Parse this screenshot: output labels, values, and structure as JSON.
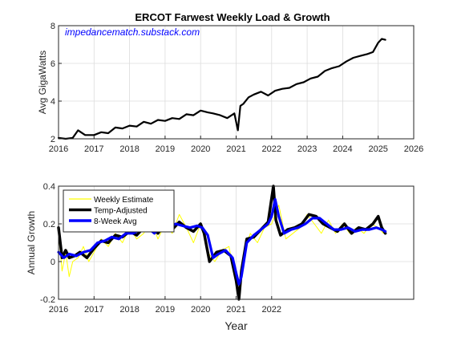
{
  "figure": {
    "title": "ERCOT Farwest Weekly Load & Growth",
    "watermark": "impedancematch.substack.com",
    "watermark_color": "#0000ff"
  },
  "chart_data": [
    {
      "type": "line",
      "title": "ERCOT Farwest Weekly Load & Growth",
      "xlabel": "",
      "ylabel": "Avg GigaWatts",
      "xlim": [
        2016,
        2026
      ],
      "ylim": [
        2,
        8
      ],
      "xticks": [
        2016,
        2017,
        2018,
        2019,
        2020,
        2021,
        2022,
        2023,
        2024,
        2025,
        2026
      ],
      "yticks": [
        2,
        4,
        6,
        8
      ],
      "grid": true,
      "series": [
        {
          "color": "#000000",
          "x": [
            2016.0,
            2016.2,
            2016.4,
            2016.55,
            2016.75,
            2017.0,
            2017.2,
            2017.4,
            2017.6,
            2017.8,
            2018.0,
            2018.2,
            2018.4,
            2018.6,
            2018.8,
            2019.0,
            2019.2,
            2019.4,
            2019.6,
            2019.8,
            2020.0,
            2020.2,
            2020.35,
            2020.55,
            2020.75,
            2020.95,
            2021.05,
            2021.12,
            2021.2,
            2021.35,
            2021.5,
            2021.7,
            2021.9,
            2022.1,
            2022.3,
            2022.5,
            2022.7,
            2022.9,
            2023.1,
            2023.3,
            2023.5,
            2023.7,
            2023.9,
            2024.1,
            2024.3,
            2024.5,
            2024.7,
            2024.85,
            2025.0,
            2025.1,
            2025.2
          ],
          "values": [
            2.05,
            2.0,
            2.05,
            2.45,
            2.2,
            2.2,
            2.35,
            2.3,
            2.6,
            2.55,
            2.7,
            2.65,
            2.9,
            2.8,
            3.0,
            2.95,
            3.1,
            3.05,
            3.3,
            3.25,
            3.5,
            3.4,
            3.35,
            3.25,
            3.1,
            3.35,
            2.45,
            3.75,
            3.85,
            4.2,
            4.35,
            4.5,
            4.3,
            4.55,
            4.65,
            4.7,
            4.9,
            5.0,
            5.2,
            5.3,
            5.6,
            5.75,
            5.85,
            6.1,
            6.3,
            6.4,
            6.5,
            6.6,
            7.1,
            7.3,
            7.25
          ]
        }
      ]
    },
    {
      "type": "line",
      "title": "",
      "xlabel": "Year",
      "ylabel": "Annual Growth",
      "xlim": [
        2016,
        2026
      ],
      "ylim": [
        -0.2,
        0.4
      ],
      "xticks": [
        2016,
        2017,
        2018,
        2019,
        2020,
        2021,
        2022
      ],
      "yticks": [
        -0.2,
        0,
        0.2,
        0.4
      ],
      "grid": true,
      "legend": "top-left",
      "series": [
        {
          "name": "Weekly Estimate",
          "color": "#ffff00",
          "x": [
            2016.0,
            2016.1,
            2016.2,
            2016.3,
            2016.4,
            2016.55,
            2016.7,
            2016.85,
            2017.0,
            2017.2,
            2017.4,
            2017.6,
            2017.8,
            2018.0,
            2018.2,
            2018.4,
            2018.6,
            2018.8,
            2019.0,
            2019.2,
            2019.4,
            2019.6,
            2019.8,
            2020.0,
            2020.2,
            2020.4,
            2020.6,
            2020.8,
            2021.0,
            2021.1,
            2021.2,
            2021.4,
            2021.6,
            2021.8,
            2022.0,
            2022.2,
            2022.4,
            2022.6,
            2022.8,
            2023.0,
            2023.2,
            2023.4,
            2023.6,
            2023.8,
            2024.0,
            2024.2,
            2024.4,
            2024.6,
            2024.8,
            2025.0,
            2025.15
          ],
          "values": [
            0.15,
            -0.05,
            0.05,
            -0.08,
            0.0,
            0.02,
            0.08,
            0.0,
            0.05,
            0.12,
            0.08,
            0.15,
            0.1,
            0.18,
            0.12,
            0.15,
            0.22,
            0.12,
            0.2,
            0.15,
            0.25,
            0.18,
            0.1,
            0.2,
            0.05,
            0.0,
            0.06,
            0.08,
            -0.12,
            -0.15,
            0.02,
            0.15,
            0.1,
            0.18,
            0.2,
            0.3,
            0.12,
            0.15,
            0.18,
            0.25,
            0.2,
            0.15,
            0.22,
            0.15,
            0.2,
            0.15,
            0.18,
            0.15,
            0.2,
            0.18,
            0.15
          ]
        },
        {
          "name": "Temp-Adjusted",
          "color": "#000000",
          "x": [
            2016.0,
            2016.1,
            2016.2,
            2016.3,
            2016.45,
            2016.6,
            2016.8,
            2017.0,
            2017.2,
            2017.4,
            2017.6,
            2017.8,
            2018.0,
            2018.2,
            2018.4,
            2018.6,
            2018.8,
            2019.0,
            2019.2,
            2019.4,
            2019.6,
            2019.8,
            2020.0,
            2020.1,
            2020.25,
            2020.45,
            2020.65,
            2020.85,
            2021.0,
            2021.08,
            2021.15,
            2021.3,
            2021.5,
            2021.7,
            2021.9,
            2022.05,
            2022.12,
            2022.25,
            2022.45,
            2022.65,
            2022.85,
            2023.05,
            2023.25,
            2023.45,
            2023.65,
            2023.85,
            2024.05,
            2024.25,
            2024.45,
            2024.65,
            2024.85,
            2025.0,
            2025.1,
            2025.2
          ],
          "values": [
            0.18,
            0.02,
            0.06,
            0.02,
            0.03,
            0.05,
            0.02,
            0.07,
            0.11,
            0.1,
            0.14,
            0.13,
            0.16,
            0.14,
            0.18,
            0.19,
            0.15,
            0.2,
            0.17,
            0.21,
            0.18,
            0.16,
            0.2,
            0.15,
            0.0,
            0.05,
            0.06,
            0.03,
            -0.1,
            -0.2,
            -0.05,
            0.12,
            0.13,
            0.17,
            0.21,
            0.4,
            0.22,
            0.14,
            0.17,
            0.18,
            0.2,
            0.25,
            0.24,
            0.2,
            0.18,
            0.16,
            0.2,
            0.15,
            0.18,
            0.17,
            0.2,
            0.24,
            0.18,
            0.15
          ]
        },
        {
          "name": "8-Week Avg",
          "color": "#0000ff",
          "x": [
            2016.0,
            2016.15,
            2016.3,
            2016.5,
            2016.7,
            2016.9,
            2017.1,
            2017.3,
            2017.5,
            2017.7,
            2017.9,
            2018.1,
            2018.3,
            2018.5,
            2018.7,
            2018.9,
            2019.1,
            2019.3,
            2019.5,
            2019.7,
            2019.9,
            2020.05,
            2020.2,
            2020.35,
            2020.5,
            2020.7,
            2020.9,
            2021.0,
            2021.08,
            2021.15,
            2021.3,
            2021.5,
            2021.7,
            2021.9,
            2022.0,
            2022.1,
            2022.2,
            2022.35,
            2022.55,
            2022.75,
            2022.95,
            2023.15,
            2023.35,
            2023.55,
            2023.75,
            2023.95,
            2024.15,
            2024.35,
            2024.55,
            2024.75,
            2024.95,
            2025.1,
            2025.2
          ],
          "values": [
            0.05,
            0.02,
            0.04,
            0.03,
            0.05,
            0.06,
            0.1,
            0.11,
            0.13,
            0.12,
            0.15,
            0.15,
            0.17,
            0.18,
            0.15,
            0.19,
            0.18,
            0.2,
            0.19,
            0.18,
            0.19,
            0.18,
            0.14,
            0.02,
            0.04,
            0.06,
            0.02,
            -0.06,
            -0.12,
            -0.08,
            0.1,
            0.14,
            0.17,
            0.2,
            0.24,
            0.33,
            0.24,
            0.15,
            0.17,
            0.18,
            0.2,
            0.23,
            0.23,
            0.2,
            0.17,
            0.17,
            0.18,
            0.16,
            0.17,
            0.17,
            0.18,
            0.17,
            0.16
          ]
        }
      ]
    }
  ]
}
